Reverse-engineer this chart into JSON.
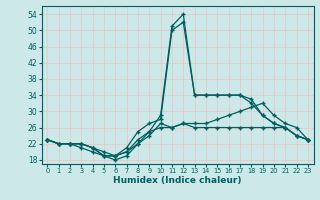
{
  "xlabel": "Humidex (Indice chaleur)",
  "bg_color": "#cce8e8",
  "grid_color": "#e8c8c8",
  "line_color": "#006060",
  "xlim": [
    -0.5,
    23.5
  ],
  "ylim": [
    17,
    56
  ],
  "yticks": [
    18,
    22,
    26,
    30,
    34,
    38,
    42,
    46,
    50,
    54
  ],
  "xticks": [
    0,
    1,
    2,
    3,
    4,
    5,
    6,
    7,
    8,
    9,
    10,
    11,
    12,
    13,
    14,
    15,
    16,
    17,
    18,
    19,
    20,
    21,
    22,
    23
  ],
  "series": [
    {
      "x": [
        0,
        1,
        2,
        3,
        4,
        5,
        6,
        7,
        8,
        9,
        10,
        11,
        12,
        13,
        14,
        15,
        16,
        17,
        18,
        19,
        20,
        21,
        22,
        23
      ],
      "y": [
        23,
        22,
        22,
        22,
        21,
        19,
        19,
        20,
        23,
        25,
        29,
        51,
        54,
        34,
        34,
        34,
        34,
        34,
        32,
        29,
        27,
        26,
        24,
        23
      ]
    },
    {
      "x": [
        0,
        1,
        2,
        3,
        4,
        5,
        6,
        7,
        8,
        9,
        10,
        11,
        12,
        13,
        14,
        15,
        16,
        17,
        18,
        19,
        20,
        21,
        22,
        23
      ],
      "y": [
        23,
        22,
        22,
        22,
        21,
        20,
        19,
        21,
        25,
        27,
        28,
        50,
        52,
        34,
        34,
        34,
        34,
        34,
        33,
        29,
        27,
        26,
        24,
        23
      ]
    },
    {
      "x": [
        0,
        1,
        2,
        3,
        4,
        5,
        6,
        7,
        8,
        9,
        10,
        11,
        12,
        13,
        14,
        15,
        16,
        17,
        18,
        19,
        20,
        21,
        22,
        23
      ],
      "y": [
        23,
        22,
        22,
        22,
        21,
        19,
        19,
        20,
        22,
        24,
        27,
        26,
        27,
        27,
        27,
        28,
        29,
        30,
        31,
        32,
        29,
        27,
        26,
        23
      ]
    },
    {
      "x": [
        0,
        1,
        2,
        3,
        4,
        5,
        6,
        7,
        8,
        9,
        10,
        11,
        12,
        13,
        14,
        15,
        16,
        17,
        18,
        19,
        20,
        21,
        22,
        23
      ],
      "y": [
        23,
        22,
        22,
        21,
        20,
        19,
        18,
        19,
        22,
        25,
        26,
        26,
        27,
        26,
        26,
        26,
        26,
        26,
        26,
        26,
        26,
        26,
        24,
        23
      ]
    }
  ]
}
